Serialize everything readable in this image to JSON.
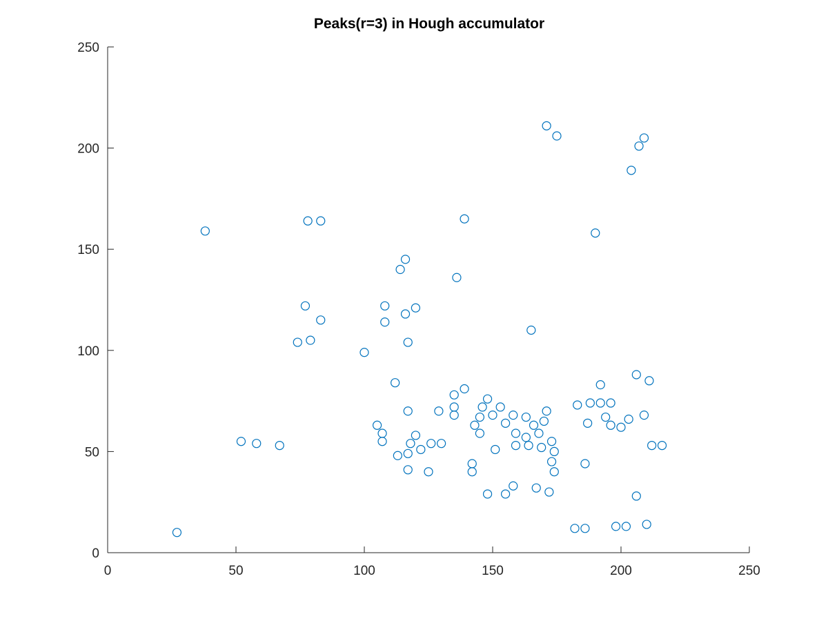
{
  "chart_data": {
    "type": "scatter",
    "title": "Peaks(r=3) in Hough accumulator",
    "xlabel": "",
    "ylabel": "",
    "xlim": [
      0,
      250
    ],
    "ylim": [
      0,
      250
    ],
    "xticks": [
      0,
      50,
      100,
      150,
      200,
      250
    ],
    "yticks": [
      0,
      50,
      100,
      150,
      200,
      250
    ],
    "grid": false,
    "marker": "open-circle",
    "marker_color": "#0072BD",
    "series": [
      {
        "points": [
          [
            27,
            10
          ],
          [
            38,
            159
          ],
          [
            52,
            55
          ],
          [
            58,
            54
          ],
          [
            67,
            53
          ],
          [
            74,
            104
          ],
          [
            77,
            122
          ],
          [
            78,
            164
          ],
          [
            79,
            105
          ],
          [
            83,
            164
          ],
          [
            83,
            115
          ],
          [
            100,
            99
          ],
          [
            105,
            63
          ],
          [
            107,
            59
          ],
          [
            107,
            55
          ],
          [
            108,
            122
          ],
          [
            108,
            114
          ],
          [
            112,
            84
          ],
          [
            113,
            48
          ],
          [
            114,
            140
          ],
          [
            116,
            145
          ],
          [
            116,
            118
          ],
          [
            117,
            104
          ],
          [
            117,
            70
          ],
          [
            117,
            49
          ],
          [
            117,
            41
          ],
          [
            118,
            54
          ],
          [
            120,
            121
          ],
          [
            120,
            58
          ],
          [
            122,
            51
          ],
          [
            125,
            40
          ],
          [
            126,
            54
          ],
          [
            129,
            70
          ],
          [
            130,
            54
          ],
          [
            135,
            78
          ],
          [
            135,
            72
          ],
          [
            135,
            68
          ],
          [
            136,
            136
          ],
          [
            139,
            165
          ],
          [
            139,
            81
          ],
          [
            142,
            44
          ],
          [
            142,
            40
          ],
          [
            143,
            63
          ],
          [
            145,
            67
          ],
          [
            145,
            59
          ],
          [
            146,
            72
          ],
          [
            148,
            76
          ],
          [
            148,
            29
          ],
          [
            150,
            68
          ],
          [
            151,
            51
          ],
          [
            153,
            72
          ],
          [
            155,
            64
          ],
          [
            155,
            29
          ],
          [
            158,
            68
          ],
          [
            158,
            33
          ],
          [
            159,
            59
          ],
          [
            159,
            53
          ],
          [
            163,
            67
          ],
          [
            163,
            57
          ],
          [
            164,
            53
          ],
          [
            165,
            110
          ],
          [
            166,
            63
          ],
          [
            167,
            32
          ],
          [
            168,
            59
          ],
          [
            169,
            52
          ],
          [
            170,
            65
          ],
          [
            171,
            211
          ],
          [
            171,
            70
          ],
          [
            172,
            30
          ],
          [
            173,
            55
          ],
          [
            173,
            45
          ],
          [
            174,
            50
          ],
          [
            174,
            40
          ],
          [
            175,
            206
          ],
          [
            182,
            12
          ],
          [
            183,
            73
          ],
          [
            186,
            44
          ],
          [
            186,
            12
          ],
          [
            187,
            64
          ],
          [
            188,
            74
          ],
          [
            190,
            158
          ],
          [
            192,
            83
          ],
          [
            192,
            74
          ],
          [
            194,
            67
          ],
          [
            196,
            74
          ],
          [
            196,
            63
          ],
          [
            198,
            13
          ],
          [
            200,
            62
          ],
          [
            202,
            13
          ],
          [
            203,
            66
          ],
          [
            204,
            189
          ],
          [
            206,
            88
          ],
          [
            206,
            28
          ],
          [
            207,
            201
          ],
          [
            209,
            205
          ],
          [
            209,
            68
          ],
          [
            210,
            14
          ],
          [
            211,
            85
          ],
          [
            212,
            53
          ],
          [
            216,
            53
          ]
        ]
      }
    ]
  }
}
